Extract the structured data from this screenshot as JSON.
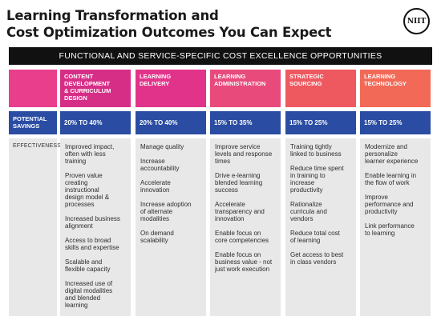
{
  "title": {
    "line1": "Learning Transformation and",
    "line2": "Cost Optimization Outcomes You Can Expect"
  },
  "logo": {
    "text": "NIIT"
  },
  "banner": "FUNCTIONAL AND SERVICE-SPECIFIC COST EXCELLENCE OPPORTUNITIES",
  "row_labels": {
    "savings": [
      "POTENTIAL",
      "SAVINGS"
    ],
    "effectiveness": "EFFECTIVENESS"
  },
  "colors": {
    "savings_row": "#2a4da3",
    "effectiveness_row": "#e8e8e8",
    "header_gradient": [
      "#d62e87",
      "#e2338a",
      "#e84a7c",
      "#ee585f",
      "#f26a57"
    ]
  },
  "columns": [
    {
      "header": [
        "CONTENT",
        "DEVELOPMENT",
        "& CURRICULUM",
        "DESIGN"
      ],
      "savings": "20% TO 40%",
      "items": [
        [
          "Improved impact,",
          "often with less",
          "training"
        ],
        [
          "Proven value",
          "creating",
          "instructional",
          "design model &",
          "processes"
        ],
        [
          "Increased business",
          "alignment"
        ],
        [
          "Access to broad",
          "skills and expertise"
        ],
        [
          "Scalable and",
          "flexible capacity"
        ],
        [
          "Increased use of",
          "digital modalities",
          "and blended",
          "learning"
        ]
      ]
    },
    {
      "header": [
        "LEARNING",
        "DELIVERY"
      ],
      "savings": "20% TO 40%",
      "items": [
        [
          "Manage quality"
        ],
        [
          "Increase",
          "accountability"
        ],
        [
          "Accelerate",
          "innovation"
        ],
        [
          "Increase adoption",
          "of alternate",
          "modalities"
        ],
        [
          "On demand",
          "scalability"
        ]
      ]
    },
    {
      "header": [
        "LEARNING",
        "ADMINISTRATION"
      ],
      "savings": "15% TO 35%",
      "items": [
        [
          "Improve service",
          "levels and response",
          "times"
        ],
        [
          "Drive e-learning",
          "blended learning",
          "success"
        ],
        [
          "Accelerate",
          "transparency and",
          "innovation"
        ],
        [
          "Enable focus on",
          "core competencies"
        ],
        [
          "Enable focus on",
          "business value - not",
          "just work execution"
        ]
      ]
    },
    {
      "header": [
        "STRATEGIC",
        "SOURCING"
      ],
      "savings": "15% TO 25%",
      "items": [
        [
          "Training tightly",
          "linked to business"
        ],
        [
          "Reduce time spent",
          "in training to",
          "increase",
          "productivity"
        ],
        [
          "Rationalize",
          "curricula and",
          "vendors"
        ],
        [
          "Reduce total cost",
          "of learning"
        ],
        [
          "Get access to best",
          "in class vendors"
        ]
      ]
    },
    {
      "header": [
        "LEARNING",
        "TECHNOLOGY"
      ],
      "savings": "15% TO 25%",
      "items": [
        [
          "Modernize and",
          "personalize",
          "learner experience"
        ],
        [
          "Enable learning in",
          "the flow of work"
        ],
        [
          "Improve",
          "performance and",
          "productivity"
        ],
        [
          "Link performance",
          "to learning"
        ]
      ]
    }
  ]
}
